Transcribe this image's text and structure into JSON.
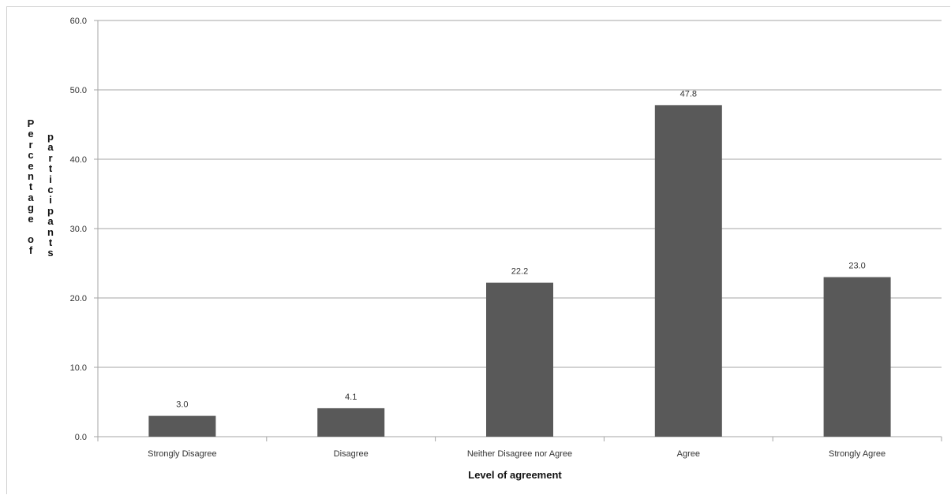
{
  "chart_data": {
    "type": "bar",
    "categories": [
      "Strongly Disagree",
      "Disagree",
      "Neither Disagree nor Agree",
      "Agree",
      "Strongly Agree"
    ],
    "values": [
      3.0,
      4.1,
      22.2,
      47.8,
      23.0
    ],
    "value_labels": [
      "3.0",
      "4.1",
      "22.2",
      "47.8",
      "23.0"
    ],
    "title": "",
    "xlabel": "Level of agreement",
    "ylabel": "Percentage of participants",
    "ylabel_lines": [
      "Percentage of",
      "participants"
    ],
    "ylim": [
      0,
      60
    ],
    "yticks": [
      0,
      10,
      20,
      30,
      40,
      50,
      60
    ],
    "ytick_labels": [
      "0.0",
      "10.0",
      "20.0",
      "30.0",
      "40.0",
      "50.0",
      "60.0"
    ],
    "grid": true,
    "legend": "none",
    "bar_color": "#595959",
    "grid_color": "#a6a6a6",
    "axis_color": "#a6a6a6"
  }
}
